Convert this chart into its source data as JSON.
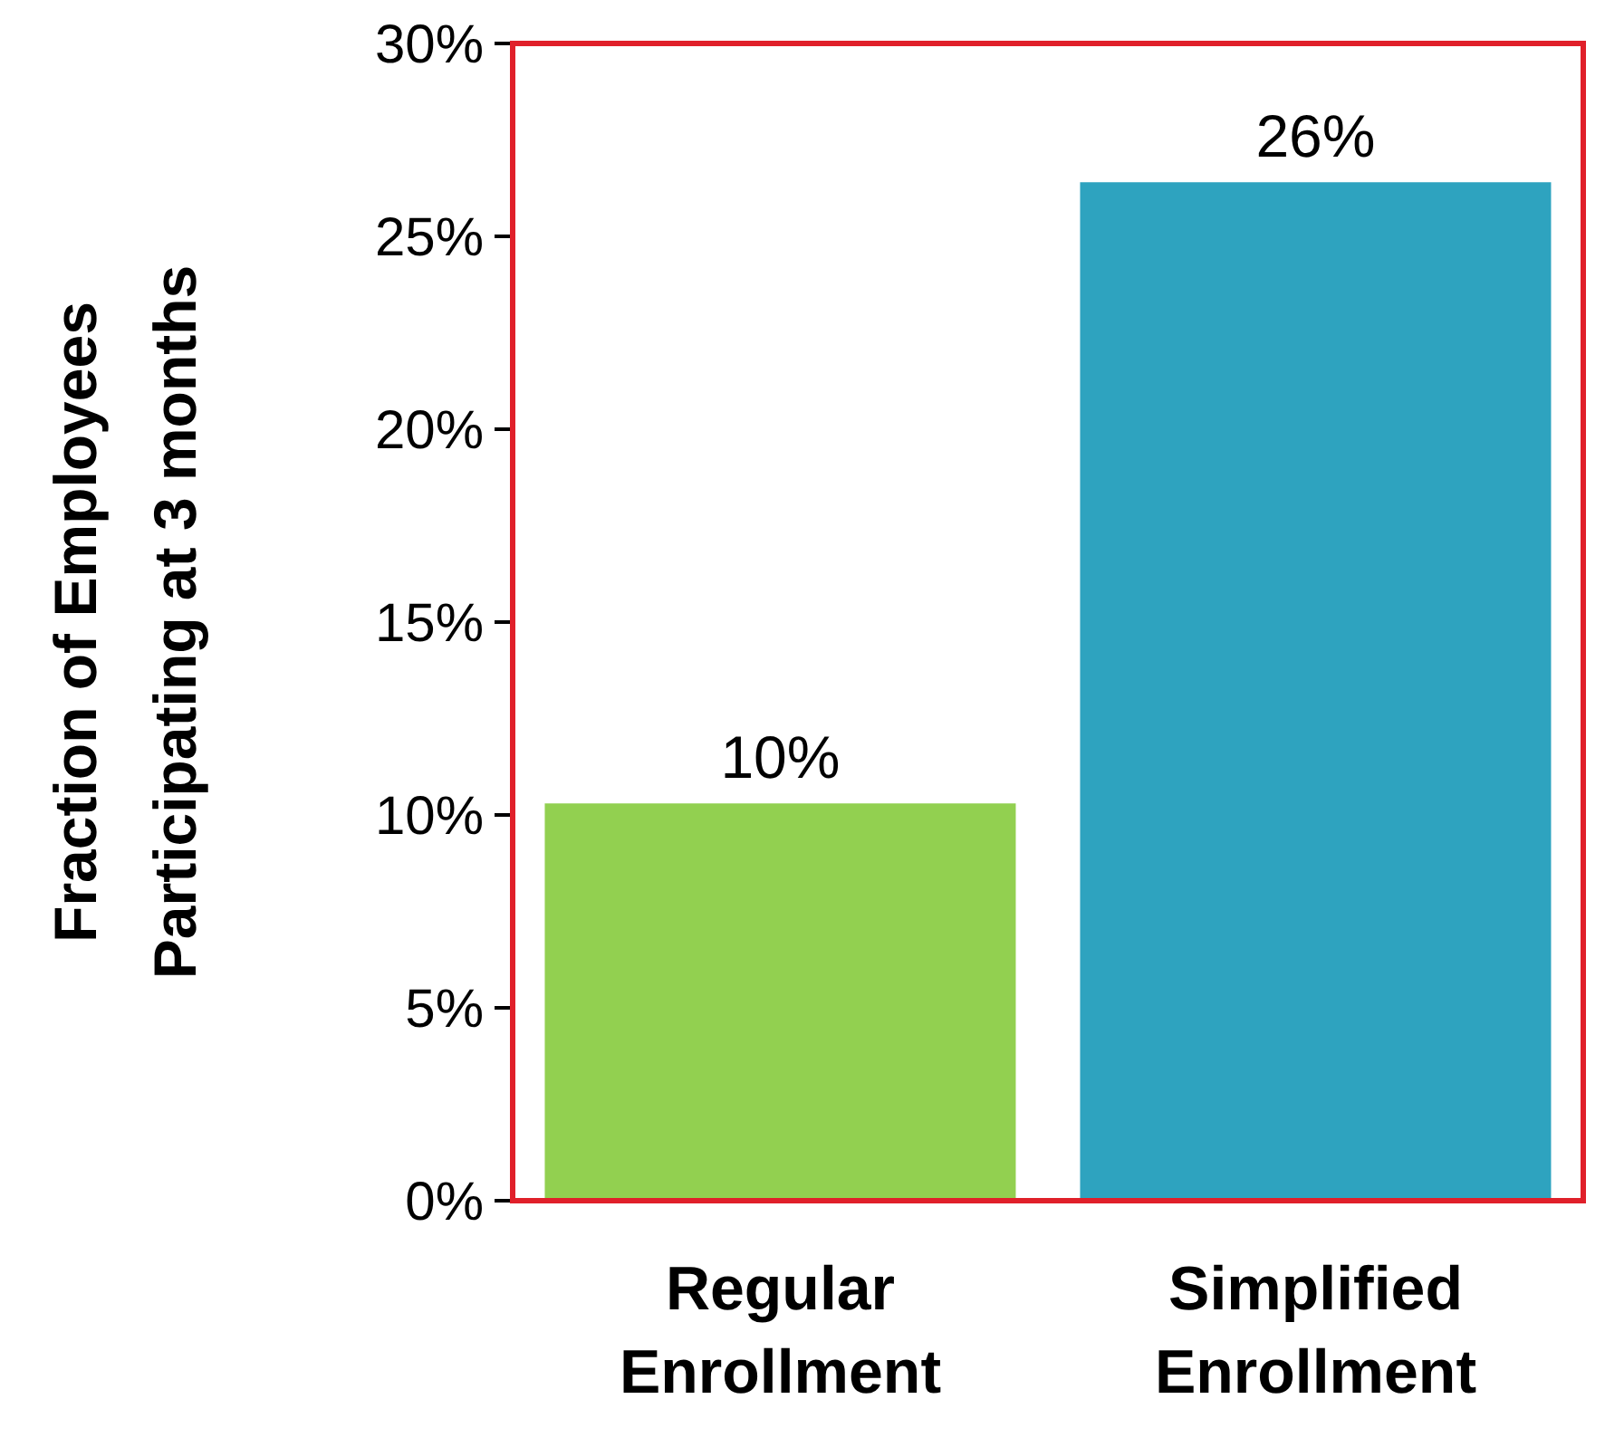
{
  "chart_data": {
    "type": "bar",
    "ylabel": "Fraction of Employees Participating at 3 months",
    "categories": [
      "Regular Enrollment",
      "Simplified Enrollment"
    ],
    "values": [
      10.3,
      26.4
    ],
    "colors": [
      "#92d050",
      "#2ea3bf"
    ],
    "value_labels": [
      "10%",
      "26%"
    ],
    "ylim": [
      0,
      30
    ],
    "yticks": [
      {
        "value": 0,
        "label": "0%"
      },
      {
        "value": 5,
        "label": "5%"
      },
      {
        "value": 10,
        "label": "10%"
      },
      {
        "value": 15,
        "label": "15%"
      },
      {
        "value": 20,
        "label": "20%"
      },
      {
        "value": 25,
        "label": "25%"
      },
      {
        "value": 30,
        "label": "30%"
      }
    ],
    "grid": false,
    "legend": false
  }
}
